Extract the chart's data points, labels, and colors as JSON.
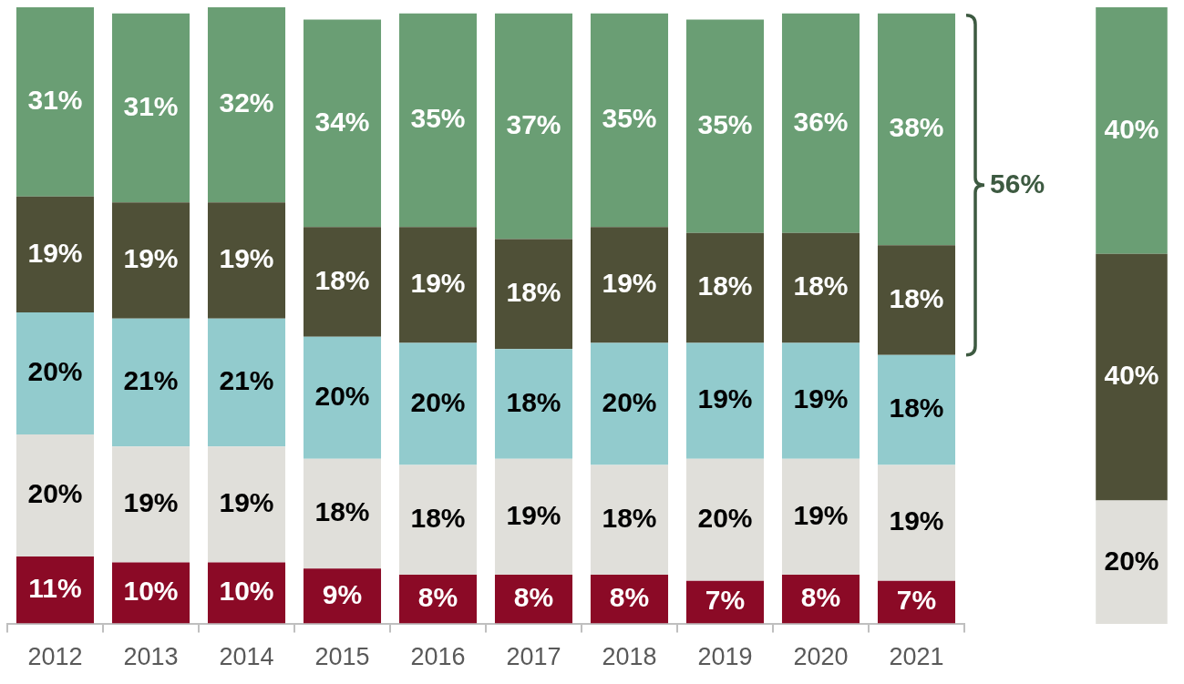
{
  "chart_data": [
    {
      "type": "bar",
      "stacked": true,
      "grid": false,
      "legend": false,
      "tick_labels": "x",
      "categories": [
        "2012",
        "2013",
        "2014",
        "2015",
        "2016",
        "2017",
        "2018",
        "2019",
        "2020",
        "2021"
      ],
      "series": [
        {
          "color": "#8b0a26",
          "values": [
            11,
            10,
            10,
            9,
            8,
            8,
            8,
            7,
            8,
            7
          ],
          "value_labels": [
            "11%",
            "10%",
            "10%",
            "9%",
            "8%",
            "8%",
            "8%",
            "7%",
            "8%",
            "7%"
          ]
        },
        {
          "color": "#e0dfda",
          "values": [
            20,
            19,
            19,
            18,
            18,
            19,
            18,
            20,
            19,
            19
          ],
          "value_labels": [
            "20%",
            "19%",
            "19%",
            "18%",
            "18%",
            "19%",
            "18%",
            "20%",
            "19%",
            "19%"
          ]
        },
        {
          "color": "#92cbcd",
          "values": [
            20,
            21,
            21,
            20,
            20,
            18,
            20,
            19,
            19,
            18
          ],
          "value_labels": [
            "20%",
            "21%",
            "21%",
            "20%",
            "20%",
            "18%",
            "20%",
            "19%",
            "19%",
            "18%"
          ]
        },
        {
          "color": "#4f5037",
          "values": [
            19,
            19,
            19,
            18,
            19,
            18,
            19,
            18,
            18,
            18
          ],
          "value_labels": [
            "19%",
            "19%",
            "19%",
            "18%",
            "19%",
            "18%",
            "19%",
            "18%",
            "18%",
            "18%"
          ]
        },
        {
          "color": "#6a9e74",
          "values": [
            31,
            31,
            32,
            34,
            35,
            37,
            35,
            35,
            36,
            38
          ],
          "value_labels": [
            "31%",
            "31%",
            "32%",
            "34%",
            "35%",
            "37%",
            "35%",
            "35%",
            "36%",
            "38%"
          ]
        }
      ],
      "annotations": [
        "56%"
      ]
    },
    {
      "type": "bar",
      "stacked": true,
      "grid": false,
      "legend": false,
      "tick_labels": false,
      "categories": [
        null
      ],
      "series": [
        {
          "color": "#e0dfda",
          "values": [
            20
          ],
          "value_labels": [
            "20%"
          ]
        },
        {
          "color": "#4f5037",
          "values": [
            40
          ],
          "value_labels": [
            "40%"
          ]
        },
        {
          "color": "#6a9e74",
          "values": [
            40
          ],
          "value_labels": [
            "40%"
          ]
        }
      ]
    }
  ]
}
